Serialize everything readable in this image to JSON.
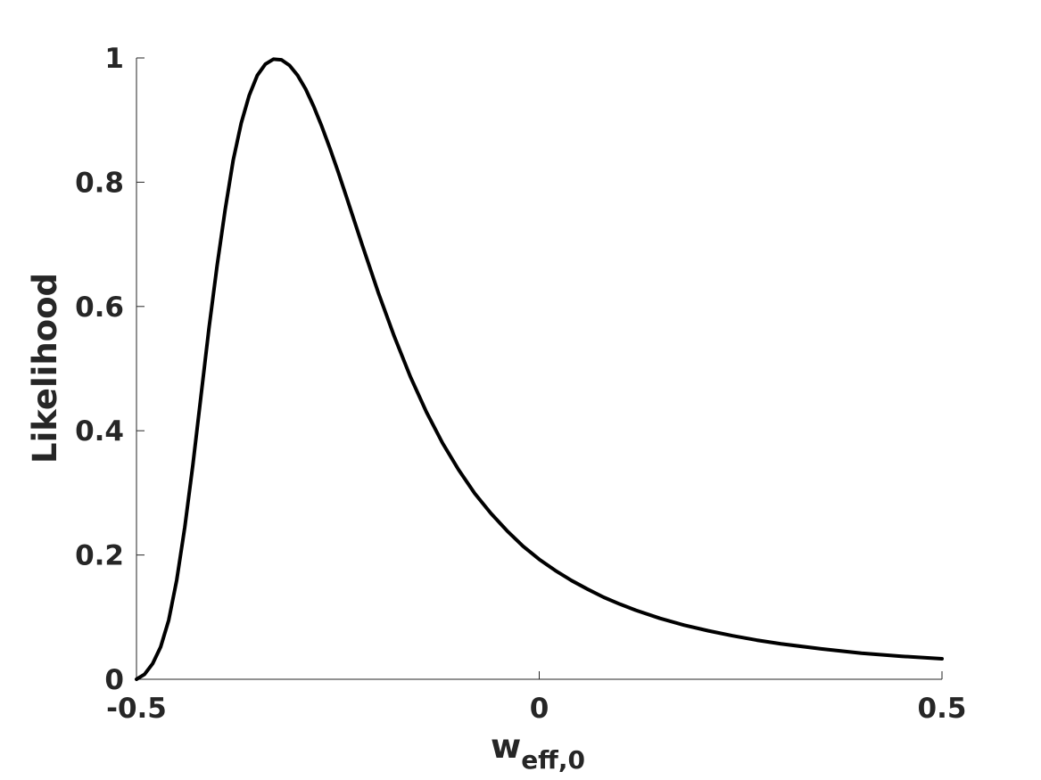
{
  "chart_data": {
    "type": "line",
    "title": "",
    "xlabel": "w",
    "xlabel_subscript": "eff,0",
    "ylabel": "Likelihood",
    "xlim": [
      -0.5,
      0.5
    ],
    "ylim": [
      0,
      1
    ],
    "x_ticks": [
      -0.5,
      0,
      0.5
    ],
    "x_tick_labels": [
      "-0.5",
      "0",
      "0.5"
    ],
    "y_ticks": [
      0,
      0.2,
      0.4,
      0.6,
      0.8,
      1
    ],
    "y_tick_labels": [
      "0",
      "0.2",
      "0.4",
      "0.6",
      "0.8",
      "1"
    ],
    "grid": false,
    "box": false,
    "line_color": "#000000",
    "axis_color": "#262626",
    "series": [
      {
        "x": [
          -0.5,
          -0.49,
          -0.48,
          -0.47,
          -0.46,
          -0.45,
          -0.44,
          -0.43,
          -0.42,
          -0.41,
          -0.4,
          -0.39,
          -0.38,
          -0.37,
          -0.36,
          -0.35,
          -0.34,
          -0.33,
          -0.32,
          -0.31,
          -0.3,
          -0.29,
          -0.28,
          -0.27,
          -0.26,
          -0.25,
          -0.24,
          -0.22,
          -0.2,
          -0.18,
          -0.16,
          -0.14,
          -0.12,
          -0.1,
          -0.08,
          -0.06,
          -0.04,
          -0.02,
          0.0,
          0.02,
          0.04,
          0.06,
          0.08,
          0.1,
          0.12,
          0.15,
          0.18,
          0.21,
          0.24,
          0.27,
          0.3,
          0.35,
          0.4,
          0.45,
          0.5
        ],
        "y": [
          0.0,
          0.008,
          0.025,
          0.052,
          0.095,
          0.16,
          0.245,
          0.345,
          0.455,
          0.565,
          0.665,
          0.755,
          0.835,
          0.895,
          0.94,
          0.972,
          0.99,
          0.998,
          0.997,
          0.988,
          0.972,
          0.95,
          0.922,
          0.89,
          0.855,
          0.818,
          0.779,
          0.7,
          0.623,
          0.552,
          0.487,
          0.43,
          0.38,
          0.337,
          0.299,
          0.267,
          0.239,
          0.214,
          0.193,
          0.175,
          0.159,
          0.145,
          0.132,
          0.121,
          0.111,
          0.098,
          0.087,
          0.078,
          0.07,
          0.063,
          0.057,
          0.049,
          0.042,
          0.037,
          0.033
        ]
      }
    ]
  }
}
